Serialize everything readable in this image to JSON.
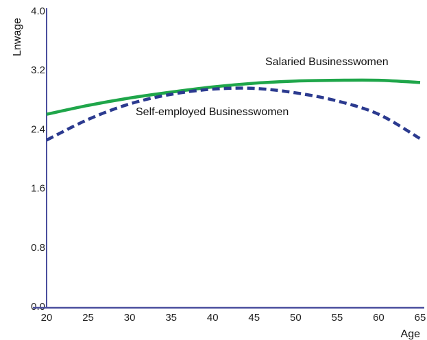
{
  "chart_data": {
    "type": "line",
    "xlabel": "Age",
    "ylabel": "Lnwage",
    "xlim": [
      20,
      65
    ],
    "ylim": [
      0.0,
      4.0
    ],
    "x_ticks": [
      "20",
      "25",
      "30",
      "35",
      "40",
      "45",
      "50",
      "55",
      "60",
      "65"
    ],
    "y_ticks": [
      "0.0",
      "0.8",
      "1.6",
      "2.4",
      "3.2",
      "4.0"
    ],
    "grid": false,
    "colors": {
      "axis": "#4a4f9e",
      "salaried": "#1fa64a",
      "self_employed": "#2b3a8f"
    },
    "series": [
      {
        "name": "Salaried Businesswomen",
        "style": "solid",
        "x": [
          20,
          25,
          30,
          35,
          40,
          45,
          50,
          55,
          60,
          65
        ],
        "values": [
          2.62,
          2.74,
          2.84,
          2.92,
          2.99,
          3.04,
          3.07,
          3.08,
          3.08,
          3.05
        ]
      },
      {
        "name": "Self-employed Businesswomen",
        "style": "dashed",
        "x": [
          20,
          25,
          30,
          35,
          40,
          45,
          50,
          55,
          60,
          65
        ],
        "values": [
          2.27,
          2.55,
          2.76,
          2.89,
          2.96,
          2.97,
          2.91,
          2.8,
          2.62,
          2.29
        ]
      }
    ]
  }
}
